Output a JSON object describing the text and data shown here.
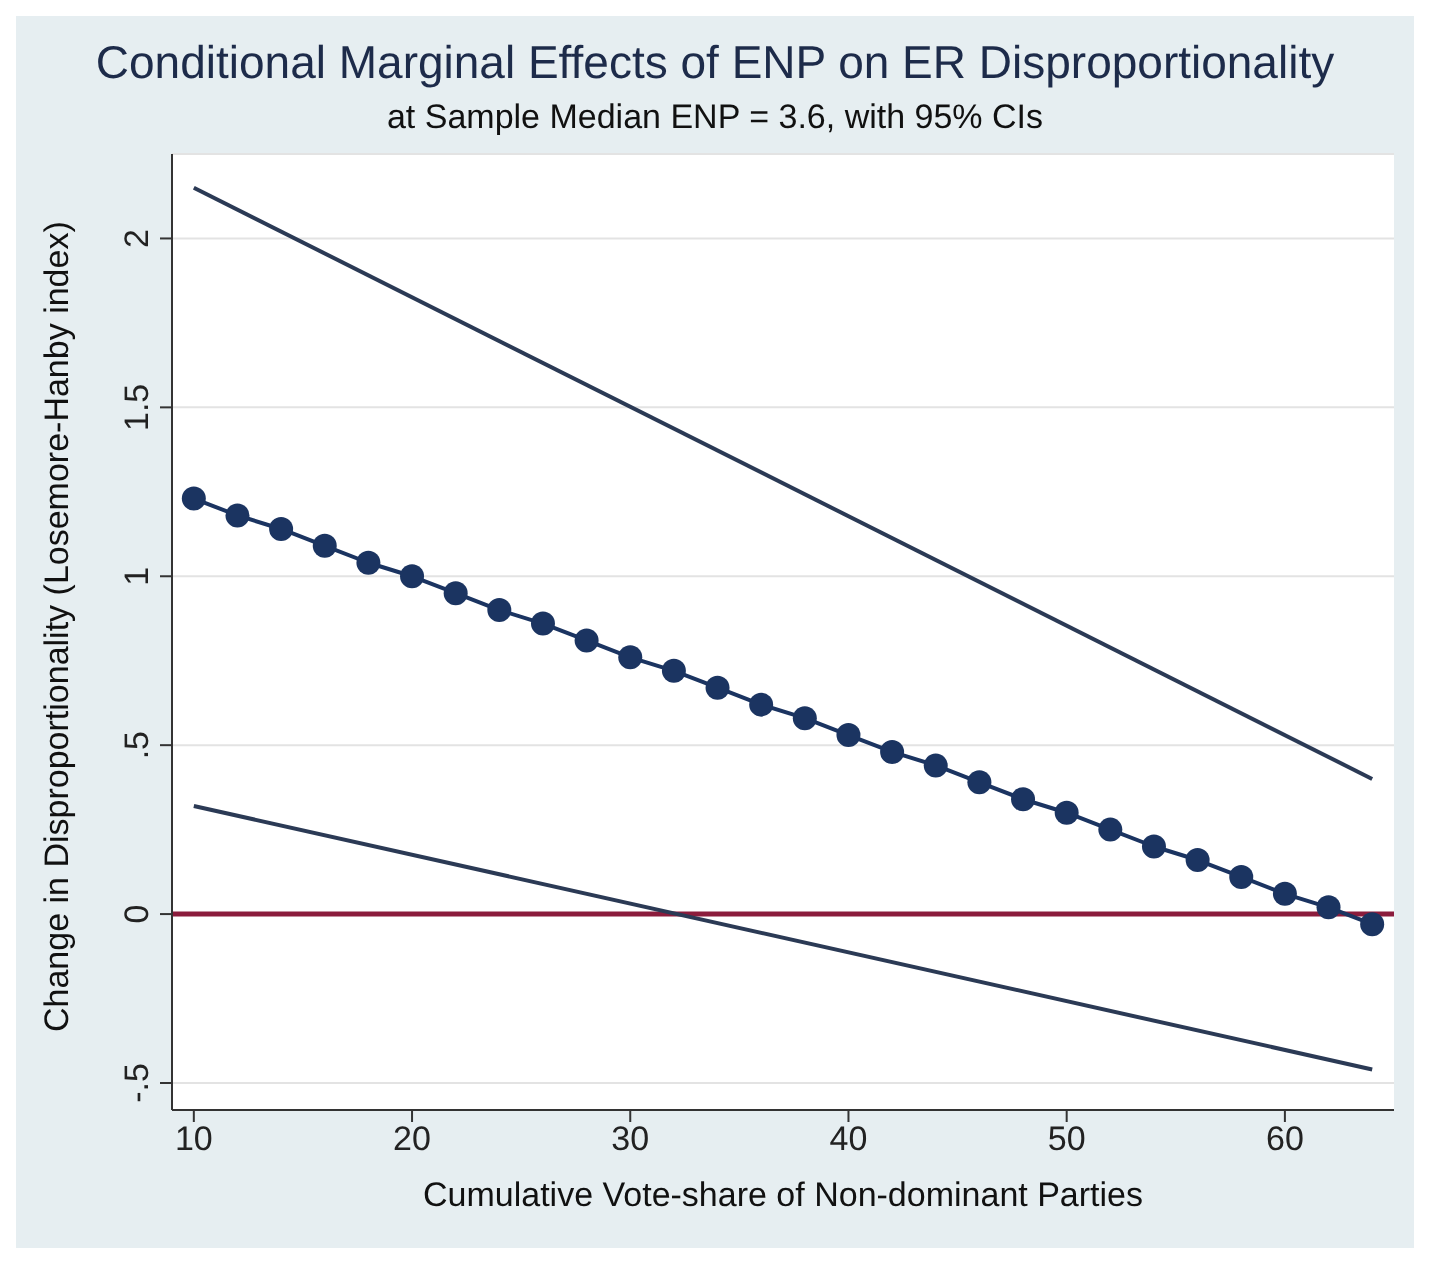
{
  "chart_data": {
    "type": "line",
    "title": "Conditional Marginal Effects of ENP on ER Disproportionality",
    "subtitle": "at Sample Median ENP = 3.6, with 95% CIs",
    "xlabel": "Cumulative Vote-share of Non-dominant Parties",
    "ylabel": "Change in Disproportionality (Losemore-Hanby index)",
    "xlim": [
      9,
      65
    ],
    "xticks": [
      10,
      20,
      30,
      40,
      50,
      60
    ],
    "ylim": [
      -0.58,
      2.25
    ],
    "yticks": [
      {
        "value": -0.5,
        "label": "-.5"
      },
      0,
      {
        "value": 0.5,
        "label": ".5"
      },
      1,
      1.5,
      2
    ],
    "grid": "y",
    "line_style": "solid",
    "series": [
      {
        "color": "#1b3461",
        "marker": "circle",
        "x": [
          10,
          12,
          14,
          16,
          18,
          20,
          22,
          24,
          26,
          28,
          30,
          32,
          34,
          36,
          38,
          40,
          42,
          44,
          46,
          48,
          50,
          52,
          54,
          56,
          58,
          60,
          62,
          64
        ],
        "values": [
          1.23,
          1.18,
          1.14,
          1.09,
          1.04,
          1.0,
          0.95,
          0.9,
          0.86,
          0.81,
          0.76,
          0.72,
          0.67,
          0.62,
          0.58,
          0.53,
          0.48,
          0.44,
          0.39,
          0.34,
          0.3,
          0.25,
          0.2,
          0.16,
          0.11,
          0.06,
          0.02,
          -0.03
        ]
      },
      {
        "color": "#2b3a55",
        "marker": "none",
        "x": [
          10,
          64
        ],
        "values": [
          2.15,
          0.4
        ]
      },
      {
        "color": "#2b3a55",
        "marker": "none",
        "x": [
          10,
          64
        ],
        "values": [
          0.32,
          -0.46
        ]
      }
    ],
    "ref_lines": [
      {
        "axis": "y",
        "value": 0,
        "color": "#8b1c3c"
      }
    ]
  }
}
